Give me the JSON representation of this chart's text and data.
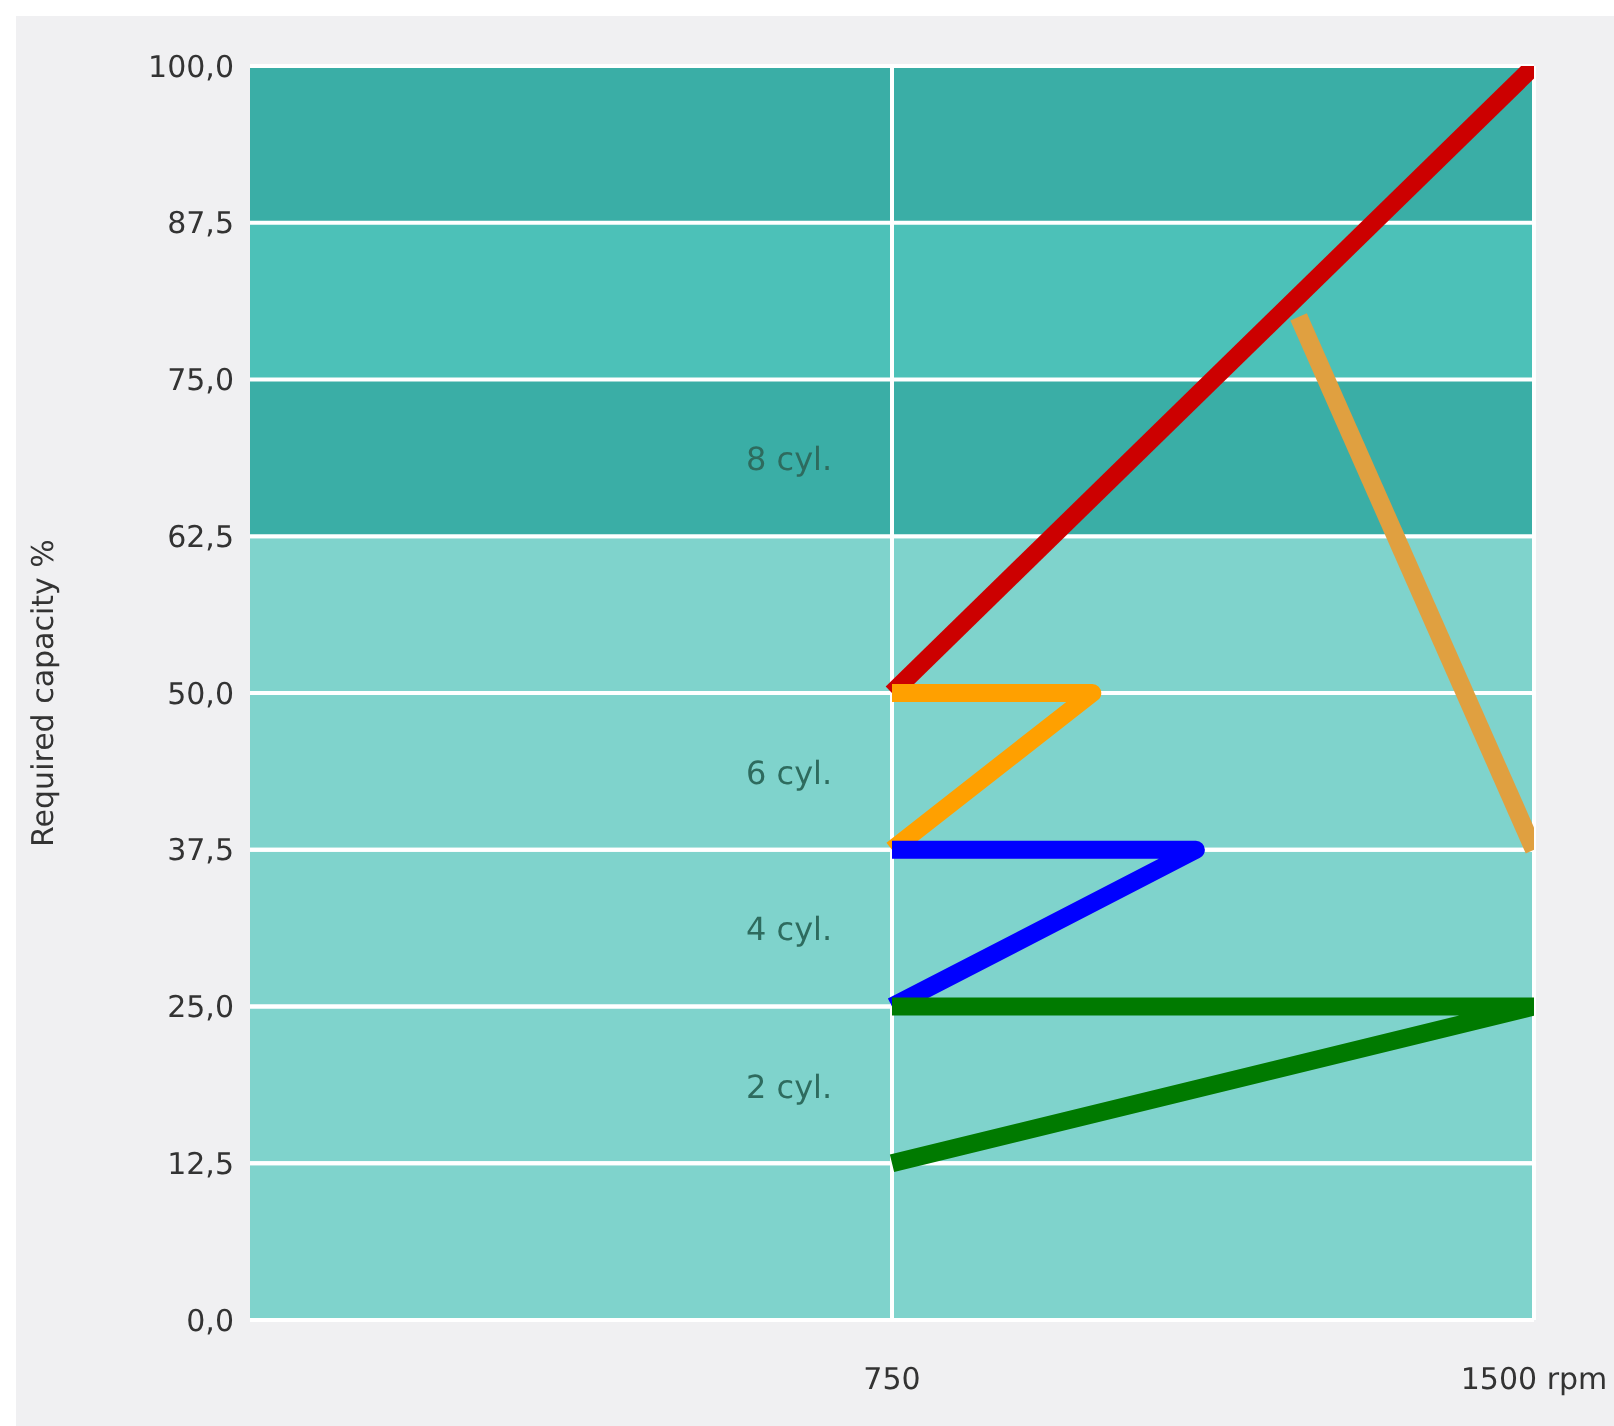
{
  "chart_data": {
    "type": "line",
    "ylabel": "Required capacity %",
    "xlim": [
      0,
      1500
    ],
    "xticks": [
      750,
      {
        "value": 1500,
        "label": "1500 rpm"
      }
    ],
    "ylim": [
      0,
      100
    ],
    "yticks": [
      {
        "value": 0,
        "label": "0,0"
      },
      {
        "value": 12.5,
        "label": "12,5"
      },
      {
        "value": 25,
        "label": "25,0"
      },
      {
        "value": 37.5,
        "label": "37,5"
      },
      {
        "value": 50,
        "label": "50,0"
      },
      {
        "value": 62.5,
        "label": "62,5"
      },
      {
        "value": 75,
        "label": "75,0"
      },
      {
        "value": 87.5,
        "label": "87,5"
      },
      {
        "value": 100,
        "label": "100,0"
      }
    ],
    "grid": true,
    "legend": false,
    "marker": "none",
    "bands": [
      {
        "axis": "y",
        "from": 87.5,
        "to": 100,
        "color": "#3aaea6"
      },
      {
        "axis": "y",
        "from": 75,
        "to": 87.5,
        "color": "#4cc1b8"
      },
      {
        "axis": "y",
        "from": 62.5,
        "to": 75,
        "color": "#3aaea6"
      }
    ],
    "series": [
      {
        "color": "#cc0000",
        "x": [
          750,
          1500
        ],
        "values": [
          50,
          100
        ]
      },
      {
        "color": "#e0a040",
        "x": [
          1225,
          1500
        ],
        "values": [
          80,
          37.5
        ]
      },
      {
        "color": "#ffa000",
        "x": [
          750,
          984,
          750
        ],
        "values": [
          50,
          50,
          37.5
        ]
      },
      {
        "color": "#0000ff",
        "x": [
          750,
          1105,
          750
        ],
        "values": [
          37.5,
          37.5,
          25
        ]
      },
      {
        "color": "#007a00",
        "x": [
          750,
          1500,
          750
        ],
        "values": [
          25,
          25,
          12.5
        ]
      }
    ],
    "annotations": [
      "8 cyl.",
      "6 cyl.",
      "4 cyl.",
      "2 cyl."
    ]
  }
}
